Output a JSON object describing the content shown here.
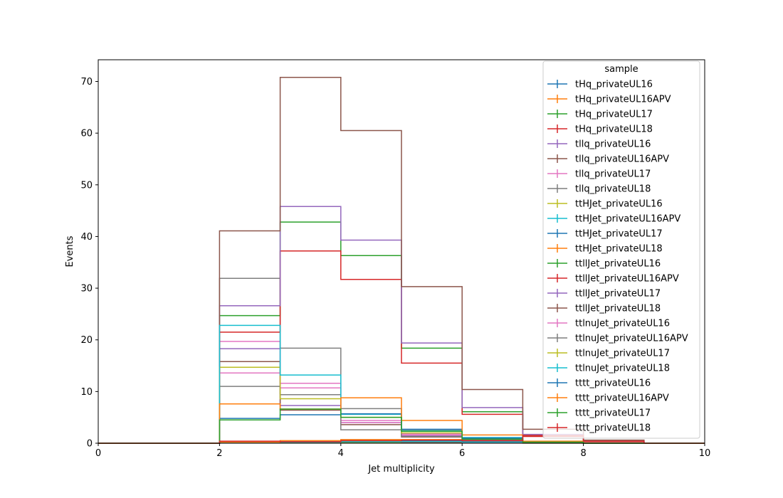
{
  "chart_data": {
    "type": "histogram-step",
    "xlabel": "Jet multiplicity",
    "ylabel": "Events",
    "xlim": [
      0,
      10
    ],
    "ylim": [
      0,
      74.2
    ],
    "xticks": [
      0,
      2,
      4,
      6,
      8,
      10
    ],
    "yticks": [
      0,
      10,
      20,
      30,
      40,
      50,
      60,
      70
    ],
    "bin_edges": [
      0,
      1,
      2,
      3,
      4,
      5,
      6,
      7,
      8,
      9,
      10
    ],
    "legend": {
      "title": "sample",
      "position": "top-right"
    },
    "grid": false,
    "series": [
      {
        "name": "tHq_privateUL16",
        "color": "#1f77b4",
        "values": [
          0,
          0,
          0.1,
          0.1,
          0.1,
          0.1,
          0.05,
          0.02,
          0,
          0
        ]
      },
      {
        "name": "tHq_privateUL16APV",
        "color": "#ff7f0e",
        "values": [
          0,
          0,
          0.1,
          0.1,
          0.1,
          0.1,
          0.05,
          0.02,
          0,
          0
        ]
      },
      {
        "name": "tHq_privateUL17",
        "color": "#2ca02c",
        "values": [
          0,
          0,
          0.2,
          0.2,
          0.2,
          0.15,
          0.1,
          0.03,
          0,
          0
        ]
      },
      {
        "name": "tHq_privateUL18",
        "color": "#d62728",
        "values": [
          0,
          0,
          0.3,
          0.3,
          0.3,
          0.2,
          0.1,
          0.04,
          0,
          0
        ]
      },
      {
        "name": "tllq_privateUL16",
        "color": "#9467bd",
        "values": [
          0,
          0,
          18.3,
          7.3,
          4.0,
          1.5,
          0.5,
          0.1,
          0,
          0
        ]
      },
      {
        "name": "tllq_privateUL16APV",
        "color": "#8c564b",
        "values": [
          0,
          0,
          15.8,
          6.4,
          3.6,
          1.2,
          0.4,
          0.1,
          0,
          0
        ]
      },
      {
        "name": "tllq_privateUL17",
        "color": "#e377c2",
        "values": [
          0,
          0,
          19.7,
          11.6,
          4.4,
          1.8,
          0.6,
          0.2,
          0,
          0
        ]
      },
      {
        "name": "tllq_privateUL18",
        "color": "#7f7f7f",
        "values": [
          0,
          0,
          31.9,
          18.4,
          6.7,
          2.5,
          0.8,
          0.2,
          0,
          0
        ]
      },
      {
        "name": "ttHJet_privateUL16",
        "color": "#bcbd22",
        "values": [
          0,
          0,
          0.1,
          0.3,
          0.4,
          0.4,
          0.3,
          0.1,
          0.03,
          0
        ]
      },
      {
        "name": "ttHJet_privateUL16APV",
        "color": "#17becf",
        "values": [
          0,
          0,
          0.1,
          0.2,
          0.3,
          0.3,
          0.2,
          0.1,
          0.02,
          0
        ]
      },
      {
        "name": "ttHJet_privateUL17",
        "color": "#1f77b4",
        "values": [
          0,
          0,
          0.2,
          0.4,
          0.5,
          0.5,
          0.4,
          0.1,
          0.03,
          0
        ]
      },
      {
        "name": "ttHJet_privateUL18",
        "color": "#ff7f0e",
        "values": [
          0,
          0,
          0.2,
          0.5,
          0.7,
          0.7,
          0.5,
          0.2,
          0.05,
          0
        ]
      },
      {
        "name": "ttllJet_privateUL16",
        "color": "#2ca02c",
        "values": [
          0,
          0,
          24.7,
          42.8,
          36.3,
          18.4,
          6.1,
          1.5,
          0.4,
          0
        ]
      },
      {
        "name": "ttllJet_privateUL16APV",
        "color": "#d62728",
        "values": [
          0,
          0,
          21.5,
          37.2,
          31.7,
          15.5,
          5.6,
          1.3,
          0.3,
          0
        ]
      },
      {
        "name": "ttllJet_privateUL17",
        "color": "#9467bd",
        "values": [
          0,
          0,
          26.6,
          45.8,
          39.3,
          19.4,
          6.9,
          1.7,
          0.4,
          0
        ]
      },
      {
        "name": "ttllJet_privateUL18",
        "color": "#8c564b",
        "values": [
          0,
          0,
          41.1,
          70.8,
          60.5,
          30.3,
          10.4,
          2.7,
          0.6,
          0
        ]
      },
      {
        "name": "ttlnuJet_privateUL16",
        "color": "#e377c2",
        "values": [
          0,
          0,
          13.6,
          10.7,
          4.0,
          1.6,
          0.7,
          0.2,
          0,
          0
        ]
      },
      {
        "name": "ttlnuJet_privateUL16APV",
        "color": "#7f7f7f",
        "values": [
          0,
          0,
          11.0,
          9.4,
          2.6,
          1.3,
          0.6,
          0.1,
          0,
          0
        ]
      },
      {
        "name": "ttlnuJet_privateUL17",
        "color": "#bcbd22",
        "values": [
          0,
          0,
          14.7,
          8.6,
          5.0,
          2.0,
          0.8,
          0.2,
          0,
          0
        ]
      },
      {
        "name": "ttlnuJet_privateUL18",
        "color": "#17becf",
        "values": [
          0,
          0,
          22.8,
          13.2,
          5.6,
          2.4,
          1.1,
          0.3,
          0,
          0
        ]
      },
      {
        "name": "tttt_privateUL16",
        "color": "#1f77b4",
        "values": [
          0,
          0,
          4.8,
          5.5,
          5.7,
          2.7,
          1.0,
          0.3,
          0,
          0
        ]
      },
      {
        "name": "tttt_privateUL16APV",
        "color": "#ff7f0e",
        "values": [
          0,
          0,
          7.6,
          6.6,
          8.8,
          4.4,
          1.6,
          0.4,
          0,
          0
        ]
      },
      {
        "name": "tttt_privateUL17",
        "color": "#2ca02c",
        "values": [
          0,
          0,
          4.5,
          6.6,
          5.0,
          2.3,
          0.8,
          0.2,
          0,
          0
        ]
      },
      {
        "name": "tttt_privateUL18",
        "color": "#d62728",
        "values": [
          0,
          0,
          0.4,
          0.3,
          0.5,
          0.6,
          0.5,
          1.5,
          0.4,
          0
        ]
      }
    ]
  }
}
